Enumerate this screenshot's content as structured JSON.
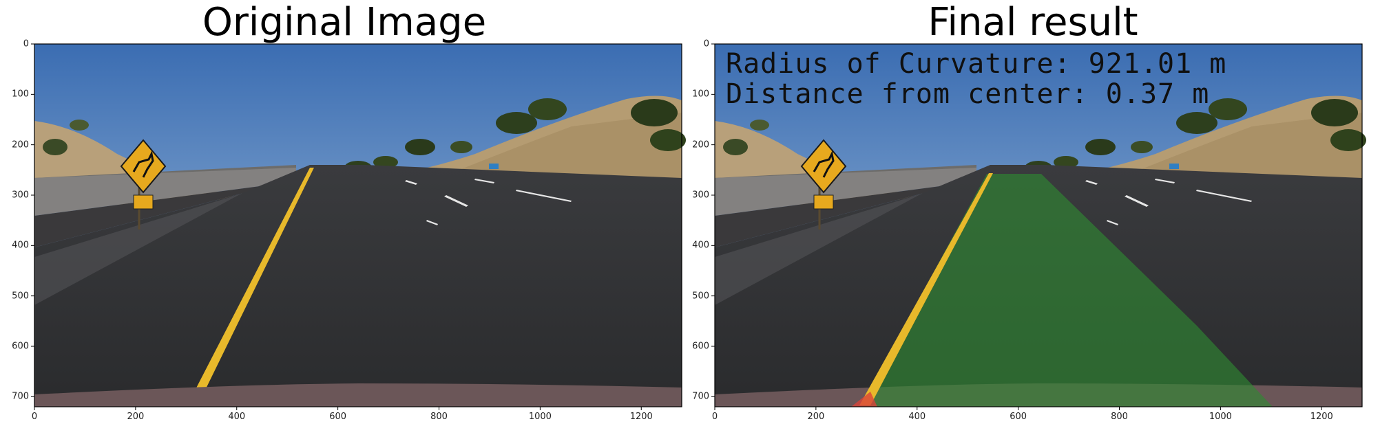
{
  "panels": [
    {
      "title": "Original Image",
      "overlay": []
    },
    {
      "title": "Final result",
      "overlay": [
        "Radius of Curvature: 921.01 m",
        "Distance from center: 0.37 m"
      ]
    }
  ],
  "axes": {
    "x_ticks": [
      0,
      200,
      400,
      600,
      800,
      1000,
      1200
    ],
    "y_ticks": [
      0,
      100,
      200,
      300,
      400,
      500,
      600,
      700
    ],
    "xlim": [
      0,
      1280
    ],
    "ylim": [
      720,
      0
    ]
  },
  "colors": {
    "sky_top": "#3c6fb3",
    "sky_bottom": "#8fb4d6",
    "hill": "#b8a27a",
    "road": "#2f3033",
    "lane_yellow": "#e8b92b",
    "lane_fill": "#2e7d32",
    "sign": "#e7a91e"
  }
}
